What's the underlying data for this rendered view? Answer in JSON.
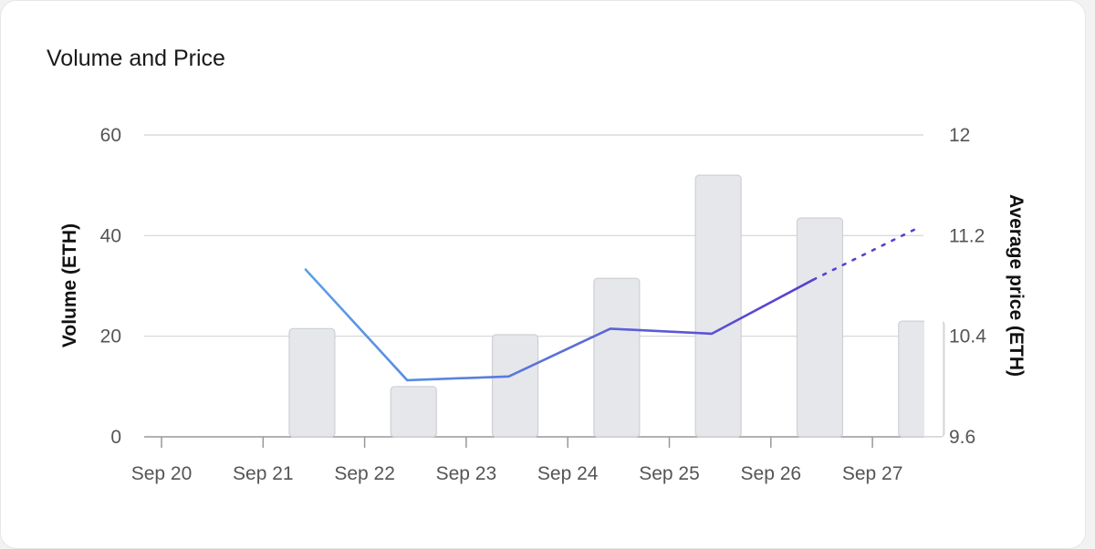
{
  "card": {
    "title": "Volume and Price"
  },
  "chart_data": {
    "type": "bar",
    "title": "Volume and Price",
    "categories": [
      "Sep 20",
      "Sep 21",
      "Sep 22",
      "Sep 23",
      "Sep 24",
      "Sep 25",
      "Sep 26",
      "Sep 27"
    ],
    "y_left": {
      "label": "Volume (ETH)",
      "ticks": [
        "0",
        "20",
        "40",
        "60"
      ],
      "range": [
        0,
        60
      ]
    },
    "y_right": {
      "label": "Average price (ETH)",
      "ticks": [
        "9.6",
        "10.4",
        "11.2",
        "12"
      ],
      "range": [
        9.6,
        12
      ]
    },
    "grid": true,
    "series": [
      {
        "kind": "bar",
        "axis": "left",
        "color": "#e6e7eb",
        "stroke": "#cfd0d4",
        "points": [
          {
            "x": "2023-09-21",
            "value": 21.5
          },
          {
            "x": "2023-09-22",
            "value": 10
          },
          {
            "x": "2023-09-23",
            "value": 20.3
          },
          {
            "x": "2023-09-24",
            "value": 31.5
          },
          {
            "x": "2023-09-25",
            "value": 52
          },
          {
            "x": "2023-09-26",
            "value": 43.5
          },
          {
            "x": "2023-09-27",
            "value": 23
          }
        ]
      },
      {
        "kind": "line",
        "axis": "right",
        "color_start": "#5aa3e6",
        "color_end": "#5a3fcf",
        "points": [
          {
            "x": "2023-09-21",
            "value": 10.93
          },
          {
            "x": "2023-09-22",
            "value": 10.05
          },
          {
            "x": "2023-09-23",
            "value": 10.08
          },
          {
            "x": "2023-09-24",
            "value": 10.46
          },
          {
            "x": "2023-09-25",
            "value": 10.42
          },
          {
            "x": "2023-09-26",
            "value": 10.85
          }
        ],
        "projection": [
          {
            "x": "2023-09-26",
            "value": 10.85
          },
          {
            "x": "2023-09-27",
            "value": 11.25
          }
        ]
      }
    ]
  }
}
